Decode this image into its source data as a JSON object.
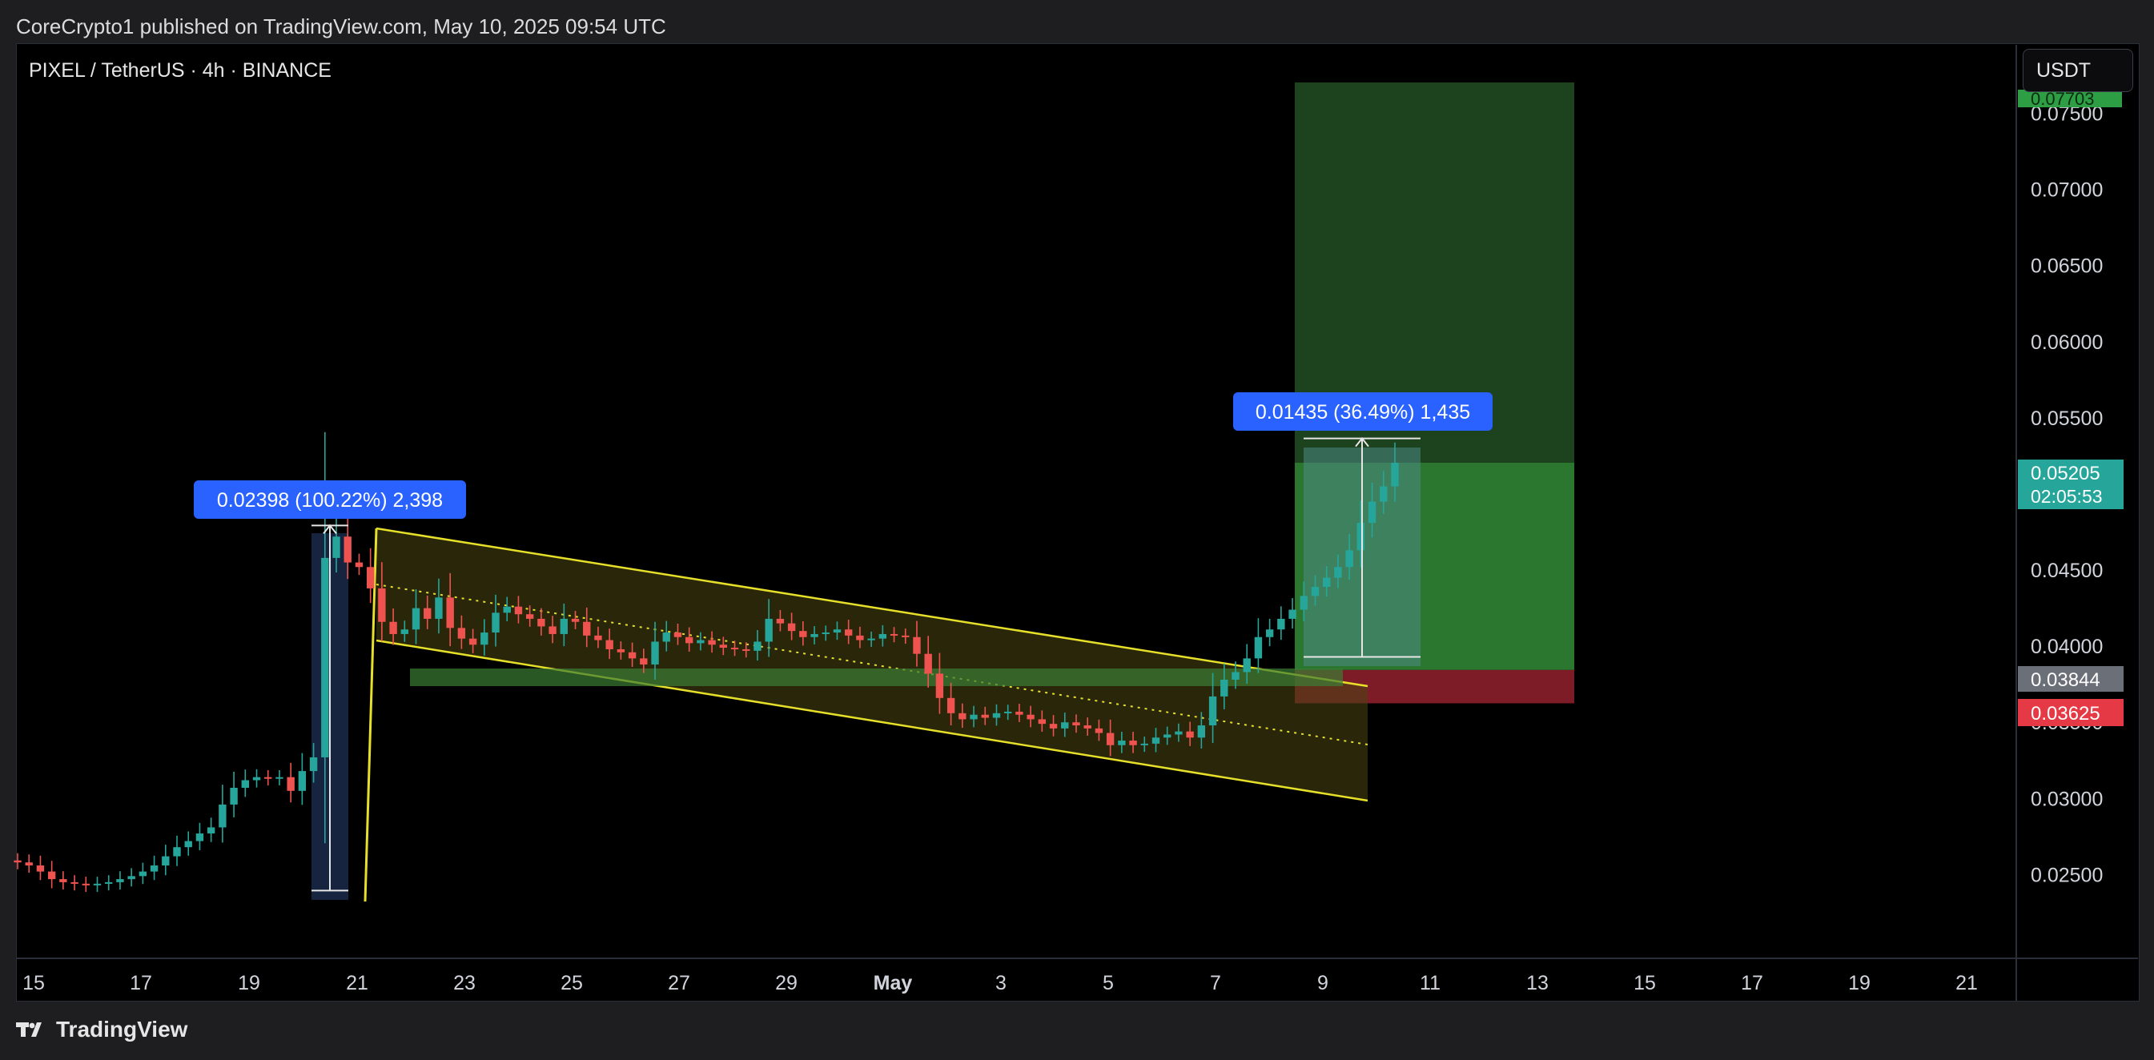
{
  "header": {
    "publisher_line": "CoreCrypto1 published on TradingView.com, May 10, 2025 09:54 UTC"
  },
  "chart_header": {
    "symbol_line": "PIXEL / TetherUS · 4h · BINANCE",
    "currency_button": "USDT"
  },
  "footer": {
    "brand": "TradingView"
  },
  "colors": {
    "up": "#26a69a",
    "down": "#ef5350",
    "channel": "#e6e02a",
    "target_zone": "#2e7d32",
    "stop_zone": "#8b1e2a",
    "measure_label": "#2962ff"
  },
  "chart_data": {
    "type": "candlestick",
    "symbol": "PIXEL / TetherUS",
    "timeframe": "4h",
    "exchange": "BINANCE",
    "x_ticks": [
      "15",
      "17",
      "19",
      "21",
      "23",
      "25",
      "27",
      "29",
      "May",
      "3",
      "5",
      "7",
      "9",
      "11",
      "13",
      "15",
      "17",
      "19",
      "21"
    ],
    "y_ticks": [
      "0.07500",
      "0.07000",
      "0.06500",
      "0.06000",
      "0.05500",
      "0.04500",
      "0.04000",
      "0.03500",
      "0.03000",
      "0.02500"
    ],
    "y_tick_values": [
      0.075,
      0.07,
      0.065,
      0.06,
      0.055,
      0.045,
      0.04,
      0.035,
      0.03,
      0.025
    ],
    "ylim": [
      0.0195,
      0.0795
    ],
    "price_labels": [
      {
        "text": "0.05205",
        "sub": "02:05:53",
        "value": 0.05205,
        "kind": "last_price"
      },
      {
        "text": "0.03844",
        "value": 0.03844,
        "kind": "entry"
      },
      {
        "text": "0.03625",
        "value": 0.03625,
        "kind": "stop"
      },
      {
        "text": "0.07703",
        "value": 0.07703,
        "kind": "target"
      }
    ],
    "measurements": [
      {
        "text": "0.02398 (100.22%) 2,398",
        "from": 0.02395,
        "to": 0.04793
      },
      {
        "text": "0.01435 (36.49%) 1,435",
        "from": 0.0393,
        "to": 0.05365
      }
    ],
    "price_path": [
      0.0258,
      0.0256,
      0.0252,
      0.0247,
      0.0245,
      0.0244,
      0.0243,
      0.0244,
      0.0245,
      0.0247,
      0.0249,
      0.0252,
      0.0256,
      0.0262,
      0.0268,
      0.0272,
      0.0277,
      0.0281,
      0.0296,
      0.0307,
      0.0312,
      0.0314,
      0.0313,
      0.0314,
      0.0305,
      0.0318,
      0.0327,
      0.0458,
      0.0472,
      0.0455,
      0.0452,
      0.0438,
      0.0416,
      0.0408,
      0.0411,
      0.0425,
      0.0418,
      0.0432,
      0.0412,
      0.0405,
      0.0401,
      0.0409,
      0.0422,
      0.0426,
      0.0421,
      0.0418,
      0.0413,
      0.0408,
      0.0418,
      0.0416,
      0.0407,
      0.0404,
      0.0398,
      0.0396,
      0.0392,
      0.0388,
      0.0403,
      0.0409,
      0.0406,
      0.0402,
      0.0404,
      0.0401,
      0.0399,
      0.0398,
      0.0397,
      0.0403,
      0.0418,
      0.0415,
      0.041,
      0.0406,
      0.0408,
      0.0409,
      0.0411,
      0.0407,
      0.0404,
      0.0405,
      0.0408,
      0.0407,
      0.0406,
      0.0395,
      0.0382,
      0.0366,
      0.0356,
      0.0352,
      0.0355,
      0.0353,
      0.0356,
      0.0357,
      0.0355,
      0.0352,
      0.0349,
      0.0346,
      0.035,
      0.0348,
      0.0346,
      0.0343,
      0.0335,
      0.0338,
      0.0335,
      0.0336,
      0.034,
      0.0342,
      0.0344,
      0.034,
      0.0348,
      0.0367,
      0.0378,
      0.0383,
      0.0392,
      0.0406,
      0.0411,
      0.0418,
      0.0424,
      0.0433,
      0.0439,
      0.0445,
      0.0452,
      0.0463,
      0.0481,
      0.0495,
      0.0505,
      0.05205
    ],
    "overlays": [
      {
        "kind": "descending-channel",
        "color": "yellow"
      },
      {
        "kind": "support-zone",
        "color": "green"
      },
      {
        "kind": "long-position",
        "entry": 0.03844,
        "stop": 0.03625,
        "target": 0.07703
      }
    ]
  }
}
